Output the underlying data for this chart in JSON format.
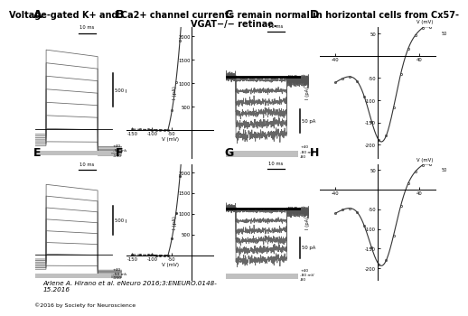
{
  "title_line1": "Voltage-gated K+ and Ca2+ channel currents remain normal in horizontal cells from Cx57-",
  "title_line2": "VGAT−/− retinae.",
  "title_fontsize": 7.0,
  "citation": "Arlene A. Hirano et al. eNeuro 2016;3:ENEURO.0148-\n15.2016",
  "copyright": "©2016 by Society for Neuroscience",
  "background_color": "#ffffff",
  "panel_label_fontsize": 9,
  "gray": "#b8b8b8",
  "dark": "#333333",
  "mid": "#666666"
}
